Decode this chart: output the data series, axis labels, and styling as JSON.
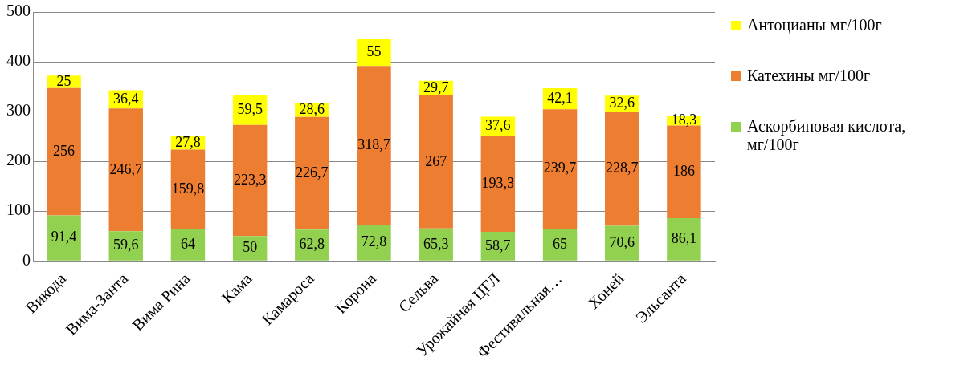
{
  "chart_data": {
    "type": "bar",
    "stacked": true,
    "categories": [
      "Викода",
      "Вима-Занта",
      "Вима Рина",
      "Кама",
      "Камароса",
      "Корона",
      "Сельва",
      "Урожайная ЦГЛ",
      "Фестивальная…",
      "Хоней",
      "Эльсанта"
    ],
    "series": [
      {
        "name": "Аскорбиновая кислота, мг/100г",
        "color": "#92d050",
        "values": [
          91.4,
          59.6,
          64,
          50,
          62.8,
          72.8,
          65.3,
          58.7,
          65,
          70.6,
          86.1
        ],
        "value_labels": [
          "91,4",
          "59,6",
          "64",
          "50",
          "62,8",
          "72,8",
          "65,3",
          "58,7",
          "65",
          "70,6",
          "86,1"
        ]
      },
      {
        "name": "Катехины мг/100г",
        "color": "#ed7d31",
        "values": [
          256,
          246.7,
          159.8,
          223.3,
          226.7,
          318.7,
          267,
          193.3,
          239.7,
          228.7,
          186
        ],
        "value_labels": [
          "256",
          "246,7",
          "159,8",
          "223,3",
          "226,7",
          "318,7",
          "267",
          "193,3",
          "239,7",
          "228,7",
          "186"
        ]
      },
      {
        "name": "Антоцианы мг/100г",
        "color": "#ffff00",
        "values": [
          25,
          36.4,
          27.8,
          59.5,
          28.6,
          55,
          29.7,
          37.6,
          42.1,
          32.6,
          18.3
        ],
        "value_labels": [
          "25",
          "36,4",
          "27,8",
          "59,5",
          "28,6",
          "55",
          "29,7",
          "37,6",
          "42,1",
          "32,6",
          "18,3"
        ]
      }
    ],
    "ylim": [
      0,
      500
    ],
    "yticks": [
      0,
      100,
      200,
      300,
      400,
      500
    ],
    "grid": "y",
    "legend": "right"
  }
}
